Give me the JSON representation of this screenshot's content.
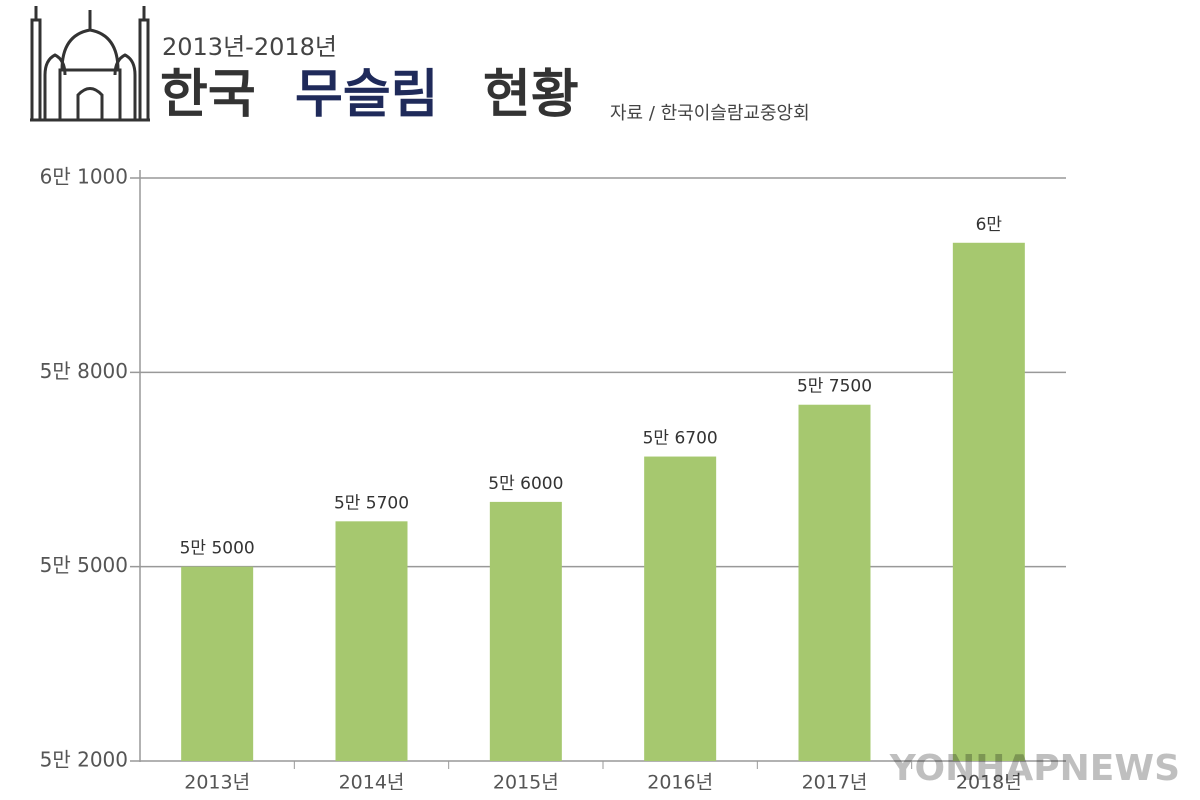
{
  "chart_data": {
    "type": "bar",
    "subtitle": "2013년-2018년",
    "title_parts": [
      "한국",
      "무슬림",
      "현황"
    ],
    "source": "자료 / 한국이슬람교중앙회",
    "categories": [
      "2013년",
      "2014년",
      "2015년",
      "2016년",
      "2017년",
      "2018년"
    ],
    "values": [
      55000,
      55700,
      56000,
      56700,
      57500,
      60000
    ],
    "value_labels": [
      "5만 5000",
      "5만 5700",
      "5만 6000",
      "5만 6700",
      "5만 7500",
      "6만"
    ],
    "color": "#a6c86f",
    "ylim": [
      52000,
      61000
    ],
    "yticks": [
      {
        "value": 52000,
        "label": "5만 2000"
      },
      {
        "value": 55000,
        "label": "5만 5000"
      },
      {
        "value": 58000,
        "label": "5만 8000"
      },
      {
        "value": 61000,
        "label": "6만 1000"
      }
    ],
    "grid": true,
    "watermark": "YONHAPNEWS"
  }
}
